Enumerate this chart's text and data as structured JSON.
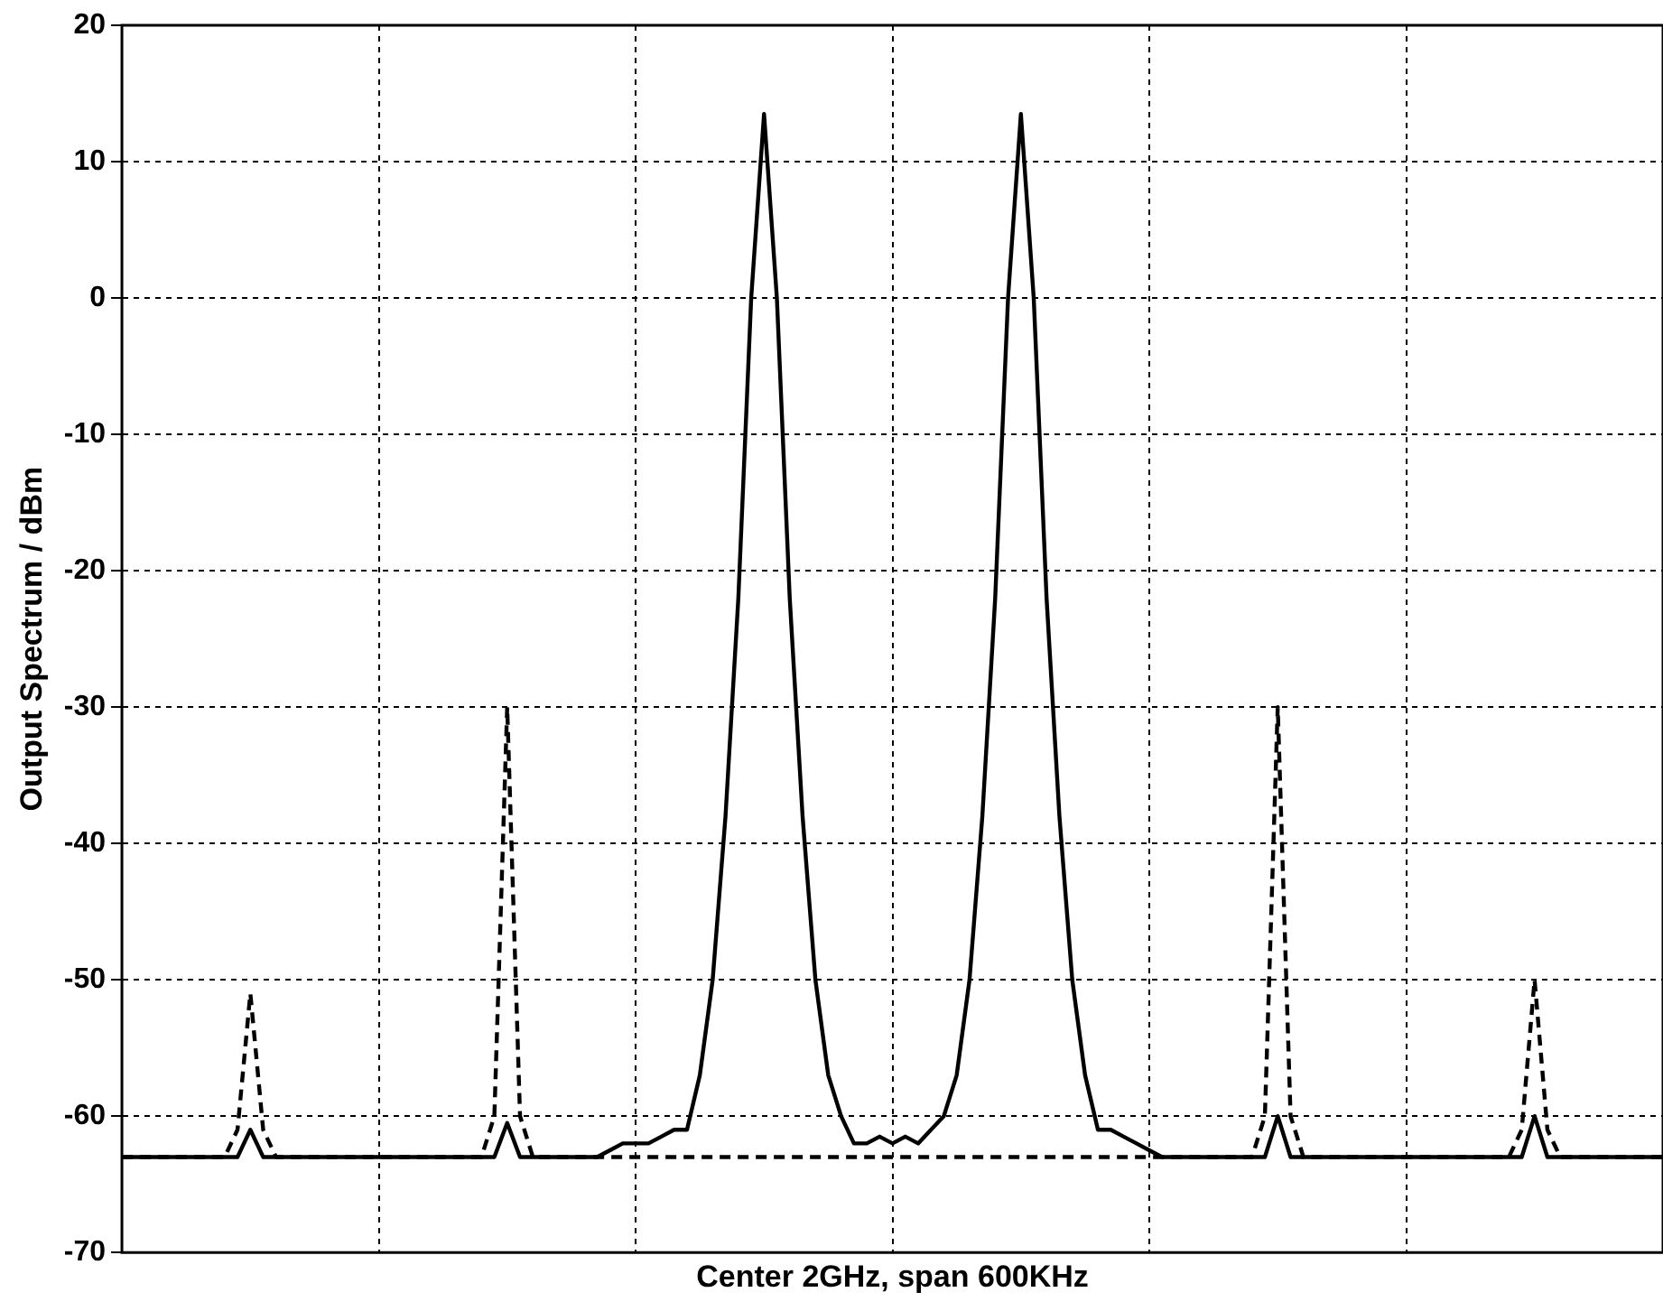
{
  "chart_data": {
    "type": "line",
    "xlabel": "Center 2GHz, span 600KHz",
    "ylabel": "Output Spectrum / dBm",
    "categories": [
      null,
      null,
      null,
      null,
      null,
      null,
      null,
      null,
      null,
      null,
      null,
      null,
      null,
      null,
      null,
      null,
      null,
      null,
      null,
      null,
      null,
      null,
      null,
      null,
      null,
      null,
      null,
      null,
      null,
      null,
      null,
      null,
      null,
      null,
      null,
      null,
      null,
      null,
      null,
      null,
      null,
      null,
      null,
      null,
      null,
      null,
      null,
      null,
      null,
      null,
      null,
      null,
      null,
      null,
      null,
      null,
      null,
      null,
      null,
      null,
      null,
      null,
      null,
      null,
      null,
      null,
      null,
      null,
      null,
      null,
      null,
      null,
      null,
      null,
      null,
      null,
      null,
      null,
      null,
      null,
      null,
      null,
      null,
      null,
      null,
      null,
      null,
      null,
      null,
      null,
      null,
      null,
      null,
      null,
      null,
      null,
      null,
      null,
      null,
      null,
      null,
      null,
      null,
      null,
      null,
      null,
      null,
      null,
      null,
      null,
      null,
      null,
      null,
      null,
      null,
      null,
      null,
      null,
      null,
      null,
      null
    ],
    "series": [
      {
        "color": "#000000",
        "line_style": "solid",
        "values": [
          -63,
          -63,
          -63,
          -63,
          -63,
          -63,
          -63,
          -63,
          -63,
          -63,
          -61,
          -63,
          -63,
          -63,
          -63,
          -63,
          -63,
          -63,
          -63,
          -63,
          -63,
          -63,
          -63,
          -63,
          -63,
          -63,
          -63,
          -63,
          -63,
          -63,
          -60.5,
          -63,
          -63,
          -63,
          -63,
          -63,
          -63,
          -63,
          -62.5,
          -62,
          -62,
          -62,
          -61.5,
          -61,
          -61,
          -57,
          -50,
          -38,
          -22,
          0,
          13.5,
          0,
          -22,
          -38,
          -50,
          -57,
          -60,
          -62,
          -62,
          -61.5,
          -62,
          -61.5,
          -62,
          -61,
          -60,
          -57,
          -50,
          -38,
          -22,
          0,
          13.5,
          0,
          -22,
          -38,
          -50,
          -57,
          -61,
          -61,
          -61.5,
          -62,
          -62.5,
          -63,
          -63,
          -63,
          -63,
          -63,
          -63,
          -63,
          -63,
          -63,
          -60,
          -63,
          -63,
          -63,
          -63,
          -63,
          -63,
          -63,
          -63,
          -63,
          -63,
          -63,
          -63,
          -63,
          -63,
          -63,
          -63,
          -63,
          -63,
          -63,
          -60,
          -63,
          -63,
          -63,
          -63,
          -63,
          -63,
          -63,
          -63,
          -63,
          -63
        ]
      },
      {
        "color": "#000000",
        "line_style": "dashed",
        "values": [
          -63,
          -63,
          -63,
          -63,
          -63,
          -63,
          -63,
          -63,
          -63,
          -61,
          -51,
          -61,
          -63,
          -63,
          -63,
          -63,
          -63,
          -63,
          -63,
          -63,
          -63,
          -63,
          -63,
          -63,
          -63,
          -63,
          -63,
          -63,
          -63,
          -60,
          -30,
          -60,
          -63,
          -63,
          -63,
          -63,
          -63,
          -63,
          -63,
          -63,
          -63,
          -63,
          -63,
          -63,
          -63,
          -63,
          -63,
          -63,
          -63,
          -63,
          -63,
          -63,
          -63,
          -63,
          -63,
          -63,
          -63,
          -63,
          -63,
          -63,
          -63,
          -63,
          -63,
          -63,
          -63,
          -63,
          -63,
          -63,
          -63,
          -63,
          -63,
          -63,
          -63,
          -63,
          -63,
          -63,
          -63,
          -63,
          -63,
          -63,
          -63,
          -63,
          -63,
          -63,
          -63,
          -63,
          -63,
          -63,
          -63,
          -60,
          -30,
          -60,
          -63,
          -63,
          -63,
          -63,
          -63,
          -63,
          -63,
          -63,
          -63,
          -63,
          -63,
          -63,
          -63,
          -63,
          -63,
          -63,
          -63,
          -61,
          -50,
          -61,
          -63,
          -63,
          -63,
          -63,
          -63,
          -63,
          -63,
          -63,
          -63
        ]
      }
    ],
    "ylim": [
      -70,
      20
    ],
    "yticks": [
      -70,
      -60,
      -50,
      -40,
      -30,
      -20,
      -10,
      0,
      10,
      20
    ],
    "grid": true,
    "legend": false,
    "tick_labels": "y",
    "marker": "none"
  }
}
